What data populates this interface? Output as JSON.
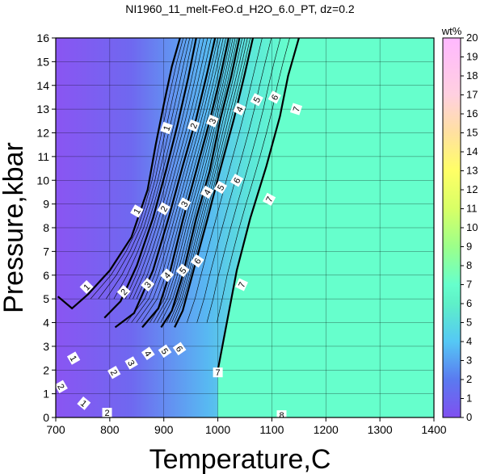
{
  "chart_data": {
    "type": "heatmap",
    "title": "NI1960_11_melt-FeO.d_H2O_6.0_PT, dz=0.2",
    "xlabel": "Temperature,C",
    "ylabel": "Pressure,kbar",
    "xlim": [
      700,
      1400
    ],
    "ylim": [
      0,
      16
    ],
    "x_ticks": [
      "700",
      "800",
      "900",
      "1000",
      "1100",
      "1200",
      "1300",
      "1400"
    ],
    "y_ticks": [
      "0",
      "1",
      "2",
      "3",
      "4",
      "5",
      "6",
      "7",
      "8",
      "9",
      "10",
      "11",
      "12",
      "13",
      "14",
      "15",
      "16"
    ],
    "grid": true,
    "colorbar": {
      "label": "wt%",
      "range": [
        0,
        20
      ],
      "ticks": [
        "0",
        "1",
        "2",
        "3",
        "4",
        "5",
        "6",
        "7",
        "8",
        "9",
        "10",
        "11",
        "12",
        "13",
        "14",
        "15",
        "16",
        "17",
        "18",
        "19",
        "20"
      ],
      "stops": [
        {
          "value": 0,
          "color": "#8050f0"
        },
        {
          "value": 2,
          "color": "#5a7af0"
        },
        {
          "value": 4,
          "color": "#55c8f5"
        },
        {
          "value": 6,
          "color": "#5ef0c8"
        },
        {
          "value": 7,
          "color": "#66ffcc"
        },
        {
          "value": 9,
          "color": "#9cff8a"
        },
        {
          "value": 11,
          "color": "#d8ff66"
        },
        {
          "value": 13,
          "color": "#ffff66"
        },
        {
          "value": 15,
          "color": "#ffe0a0"
        },
        {
          "value": 17,
          "color": "#ffd0e0"
        },
        {
          "value": 20,
          "color": "#ffb8ff"
        }
      ]
    },
    "major_contours": [
      {
        "level": "1",
        "points": [
          [
            704,
            5.1
          ],
          [
            730,
            4.6
          ],
          [
            760,
            5.2
          ],
          [
            800,
            6.2
          ],
          [
            840,
            7.6
          ],
          [
            870,
            9.6
          ],
          [
            885,
            11.5
          ],
          [
            900,
            13.2
          ],
          [
            915,
            14.8
          ],
          [
            930,
            16
          ]
        ]
      },
      {
        "level": "2",
        "points": [
          [
            790,
            4.2
          ],
          [
            820,
            4.9
          ],
          [
            850,
            6.4
          ],
          [
            880,
            8.4
          ],
          [
            905,
            10.5
          ],
          [
            925,
            12.3
          ],
          [
            945,
            14.3
          ],
          [
            960,
            16
          ]
        ]
      },
      {
        "level": "3",
        "points": [
          [
            810,
            3.8
          ],
          [
            845,
            4.4
          ],
          [
            880,
            6.2
          ],
          [
            910,
            8.5
          ],
          [
            935,
            10.6
          ],
          [
            960,
            12.6
          ],
          [
            980,
            14.5
          ],
          [
            995,
            16
          ]
        ]
      },
      {
        "level": "4",
        "points": [
          [
            860,
            3.8
          ],
          [
            890,
            4.6
          ],
          [
            910,
            6.0
          ],
          [
            935,
            8.3
          ],
          [
            960,
            10.4
          ],
          [
            985,
            12.5
          ],
          [
            1005,
            14.4
          ],
          [
            1020,
            16
          ]
        ]
      },
      {
        "level": "5",
        "points": [
          [
            895,
            3.8
          ],
          [
            915,
            4.5
          ],
          [
            935,
            6.0
          ],
          [
            960,
            8.4
          ],
          [
            985,
            10.4
          ],
          [
            1005,
            12.6
          ],
          [
            1025,
            14.4
          ],
          [
            1040,
            16
          ]
        ]
      },
      {
        "level": "6",
        "points": [
          [
            920,
            3.8
          ],
          [
            935,
            4.5
          ],
          [
            955,
            6.2
          ],
          [
            980,
            8.3
          ],
          [
            1005,
            10.5
          ],
          [
            1030,
            12.6
          ],
          [
            1050,
            14.5
          ],
          [
            1065,
            16
          ]
        ]
      },
      {
        "level": "7",
        "points": [
          [
            1000,
            2.0
          ],
          [
            1015,
            3.8
          ],
          [
            1035,
            6.2
          ],
          [
            1060,
            8.4
          ],
          [
            1090,
            10.6
          ],
          [
            1115,
            12.7
          ],
          [
            1130,
            14.4
          ],
          [
            1150,
            16
          ]
        ]
      }
    ],
    "contour_labels": [
      {
        "text": "1",
        "x": 905,
        "y": 12.2,
        "angle": -70
      },
      {
        "text": "2",
        "x": 955,
        "y": 12.3,
        "angle": -68
      },
      {
        "text": "3",
        "x": 990,
        "y": 12.5,
        "angle": -66
      },
      {
        "text": "4",
        "x": 1040,
        "y": 13.0,
        "angle": -64
      },
      {
        "text": "5",
        "x": 1072,
        "y": 13.4,
        "angle": -62
      },
      {
        "text": "6",
        "x": 1105,
        "y": 13.5,
        "angle": -62
      },
      {
        "text": "7",
        "x": 1145,
        "y": 13.0,
        "angle": -72
      },
      {
        "text": "1",
        "x": 850,
        "y": 8.7,
        "angle": -60
      },
      {
        "text": "2",
        "x": 900,
        "y": 8.8,
        "angle": -60
      },
      {
        "text": "3",
        "x": 938,
        "y": 9.0,
        "angle": -60
      },
      {
        "text": "4",
        "x": 980,
        "y": 9.5,
        "angle": -60
      },
      {
        "text": "5",
        "x": 1005,
        "y": 9.7,
        "angle": -60
      },
      {
        "text": "6",
        "x": 1035,
        "y": 10.0,
        "angle": -60
      },
      {
        "text": "7",
        "x": 1095,
        "y": 9.2,
        "angle": -62
      },
      {
        "text": "1",
        "x": 757,
        "y": 5.5,
        "angle": -45
      },
      {
        "text": "2",
        "x": 826,
        "y": 5.3,
        "angle": -48
      },
      {
        "text": "3",
        "x": 870,
        "y": 5.6,
        "angle": -50
      },
      {
        "text": "4",
        "x": 906,
        "y": 6.0,
        "angle": -50
      },
      {
        "text": "5",
        "x": 935,
        "y": 6.2,
        "angle": -52
      },
      {
        "text": "6",
        "x": 962,
        "y": 6.6,
        "angle": -55
      },
      {
        "text": "7",
        "x": 1044,
        "y": 5.6,
        "angle": -65
      },
      {
        "text": "1",
        "x": 733,
        "y": 2.5,
        "angle": 60
      },
      {
        "text": "2",
        "x": 808,
        "y": 1.9,
        "angle": 60
      },
      {
        "text": "3",
        "x": 840,
        "y": 2.3,
        "angle": 60
      },
      {
        "text": "4",
        "x": 871,
        "y": 2.7,
        "angle": 55
      },
      {
        "text": "5",
        "x": 902,
        "y": 2.8,
        "angle": 55
      },
      {
        "text": "6",
        "x": 929,
        "y": 2.9,
        "angle": 55
      },
      {
        "text": "7",
        "x": 1000,
        "y": 1.9,
        "angle": 0
      },
      {
        "text": "2",
        "x": 710,
        "y": 1.3,
        "angle": 60
      },
      {
        "text": "1",
        "x": 752,
        "y": 0.6,
        "angle": 40
      },
      {
        "text": "2",
        "x": 795,
        "y": 0.2,
        "angle": 0
      },
      {
        "text": "8",
        "x": 1118,
        "y": 0.1,
        "angle": 0
      }
    ]
  }
}
